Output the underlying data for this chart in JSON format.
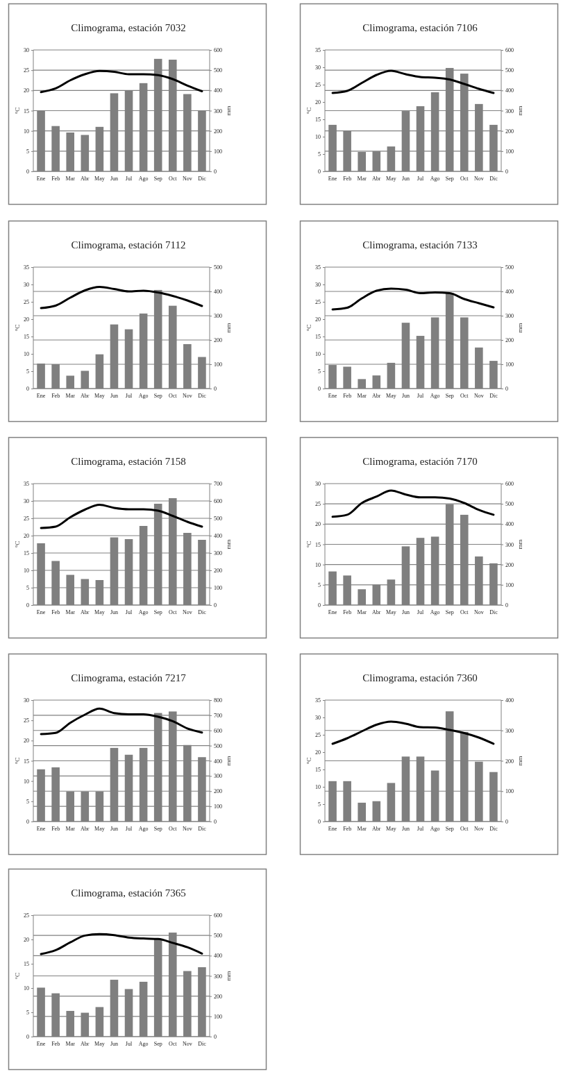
{
  "chart_data": [
    {
      "type": "bar",
      "title": "Climograma, estación 7032",
      "categories": [
        "Ene",
        "Feb",
        "Mar",
        "Abr",
        "May",
        "Jun",
        "Jul",
        "Ago",
        "Sep",
        "Oct",
        "Nov",
        "Dic"
      ],
      "ylabel": "°C",
      "y2label": "mm",
      "ylim": [
        0,
        30
      ],
      "yticks": [
        0,
        5,
        10,
        15,
        20,
        25,
        30
      ],
      "y2lim": [
        0,
        600
      ],
      "y2ticks": [
        0,
        100,
        200,
        300,
        400,
        500,
        600
      ],
      "grid": "y2",
      "series": [
        {
          "axis": "y2",
          "color": "#7f7f7f",
          "values": [
            300,
            224,
            192,
            180,
            220,
            386,
            400,
            436,
            556,
            552,
            382,
            300
          ]
        },
        {
          "type": "line",
          "axis": "y",
          "color": "#000000",
          "values": [
            19.6,
            20.5,
            22.5,
            24,
            24.8,
            24.6,
            24,
            24,
            23.8,
            22.8,
            21.2,
            19.8
          ]
        }
      ]
    },
    {
      "type": "bar",
      "title": "Climograma, estación 7106",
      "categories": [
        "Ene",
        "Feb",
        "Mar",
        "Abr",
        "May",
        "Jun",
        "Jul",
        "Ago",
        "Sep",
        "Oct",
        "Nov",
        "Dic"
      ],
      "ylabel": "°C",
      "y2label": "mm",
      "ylim": [
        0,
        35
      ],
      "yticks": [
        0,
        5,
        10,
        15,
        20,
        25,
        30,
        35
      ],
      "y2lim": [
        0,
        600
      ],
      "y2ticks": [
        0,
        100,
        200,
        300,
        400,
        500,
        600
      ],
      "grid": "y2",
      "series": [
        {
          "axis": "y2",
          "color": "#7f7f7f",
          "values": [
            230,
            202,
            96,
            99,
            123,
            298,
            322,
            391,
            511,
            483,
            333,
            230
          ]
        },
        {
          "type": "line",
          "axis": "y",
          "color": "#000000",
          "values": [
            22.6,
            23.2,
            25.5,
            27.8,
            29,
            28,
            27.2,
            27,
            26.5,
            25.2,
            23.8,
            22.6
          ]
        }
      ]
    },
    {
      "type": "bar",
      "title": "Climograma, estación 7112",
      "categories": [
        "Ene",
        "Feb",
        "Mar",
        "Abr",
        "May",
        "Jun",
        "Jul",
        "Ago",
        "Sep",
        "Oct",
        "Nov",
        "Dic"
      ],
      "ylabel": "°C",
      "y2label": "mm",
      "ylim": [
        0,
        35
      ],
      "yticks": [
        0,
        5,
        10,
        15,
        20,
        25,
        30,
        35
      ],
      "y2lim": [
        0,
        500
      ],
      "y2ticks": [
        0,
        100,
        200,
        300,
        400,
        500
      ],
      "grid": "y2",
      "series": [
        {
          "axis": "y2",
          "color": "#7f7f7f",
          "values": [
            103,
            100,
            53,
            73,
            141,
            264,
            244,
            309,
            406,
            341,
            183,
            130
          ]
        },
        {
          "type": "line",
          "axis": "y",
          "color": "#000000",
          "values": [
            23.2,
            23.9,
            26.2,
            28.3,
            29.3,
            28.7,
            28,
            28.2,
            27.7,
            26.7,
            25.4,
            23.8
          ]
        }
      ]
    },
    {
      "type": "bar",
      "title": "Climograma, estación 7133",
      "categories": [
        "Ene",
        "Feb",
        "Mar",
        "Abr",
        "May",
        "Jun",
        "Jul",
        "Ago",
        "Sep",
        "Oct",
        "Nov",
        "Dic"
      ],
      "ylabel": "°C",
      "y2label": "mm",
      "ylim": [
        0,
        35
      ],
      "yticks": [
        0,
        5,
        10,
        15,
        20,
        25,
        30,
        35
      ],
      "y2lim": [
        0,
        500
      ],
      "y2ticks": [
        0,
        100,
        200,
        300,
        400,
        500
      ],
      "grid": "y2",
      "series": [
        {
          "axis": "y2",
          "color": "#7f7f7f",
          "values": [
            97,
            90,
            39,
            54,
            106,
            271,
            217,
            293,
            393,
            293,
            169,
            114
          ]
        },
        {
          "type": "line",
          "axis": "y",
          "color": "#000000",
          "values": [
            22.8,
            23.3,
            26,
            28.2,
            28.8,
            28.5,
            27.5,
            27.7,
            27.5,
            25.8,
            24.6,
            23.4
          ]
        }
      ]
    },
    {
      "type": "bar",
      "title": "Climograma, estación 7158",
      "categories": [
        "Ene",
        "Feb",
        "Mar",
        "Abr",
        "May",
        "Jun",
        "Jul",
        "Ago",
        "Sep",
        "Oct",
        "Nov",
        "Dic"
      ],
      "ylabel": "°C",
      "y2label": "mm",
      "ylim": [
        0,
        35
      ],
      "yticks": [
        0,
        5,
        10,
        15,
        20,
        25,
        30,
        35
      ],
      "y2lim": [
        0,
        700
      ],
      "y2ticks": [
        0,
        100,
        200,
        300,
        400,
        500,
        600,
        700
      ],
      "grid": "y2",
      "series": [
        {
          "axis": "y2",
          "color": "#7f7f7f",
          "values": [
            356,
            254,
            174,
            150,
            144,
            390,
            380,
            456,
            584,
            616,
            416,
            376
          ]
        },
        {
          "type": "line",
          "axis": "y",
          "color": "#000000",
          "values": [
            22.2,
            22.6,
            25.3,
            27.5,
            28.9,
            28,
            27.6,
            27.6,
            27.2,
            25.7,
            24,
            22.6
          ]
        }
      ]
    },
    {
      "type": "bar",
      "title": "Climograma, estación 7170",
      "categories": [
        "Ene",
        "Feb",
        "Mar",
        "Abr",
        "May",
        "Jun",
        "Jul",
        "Ago",
        "Sep",
        "Oct",
        "Nov",
        "Dic"
      ],
      "ylabel": "°C",
      "y2label": "mm",
      "ylim": [
        0,
        30
      ],
      "yticks": [
        0,
        5,
        10,
        15,
        20,
        25,
        30
      ],
      "y2lim": [
        0,
        600
      ],
      "y2ticks": [
        0,
        100,
        200,
        300,
        400,
        500,
        600
      ],
      "grid": "y2",
      "series": [
        {
          "axis": "y2",
          "color": "#7f7f7f",
          "values": [
            166,
            146,
            78,
            100,
            126,
            290,
            332,
            338,
            498,
            446,
            240,
            206
          ]
        },
        {
          "type": "line",
          "axis": "y",
          "color": "#000000",
          "values": [
            21.8,
            22.3,
            25.2,
            26.8,
            28.3,
            27.3,
            26.6,
            26.6,
            26.3,
            25.2,
            23.5,
            22.3
          ]
        }
      ]
    },
    {
      "type": "bar",
      "title": "Climograma, estación 7217",
      "categories": [
        "Ene",
        "Feb",
        "Mar",
        "Abr",
        "May",
        "Jun",
        "Jul",
        "Ago",
        "Sep",
        "Oct",
        "Nov",
        "Dic"
      ],
      "ylabel": "°C",
      "y2label": "mm",
      "ylim": [
        0,
        30
      ],
      "yticks": [
        0,
        5,
        10,
        15,
        20,
        25,
        30
      ],
      "y2lim": [
        0,
        800
      ],
      "y2ticks": [
        0,
        100,
        200,
        300,
        400,
        500,
        600,
        700,
        800
      ],
      "grid": "y2",
      "series": [
        {
          "axis": "y2",
          "color": "#7f7f7f",
          "values": [
            344,
            357,
            197,
            197,
            197,
            485,
            440,
            485,
            715,
            725,
            504,
            424
          ]
        },
        {
          "type": "line",
          "axis": "y",
          "color": "#000000",
          "values": [
            21.6,
            21.9,
            24.4,
            26.4,
            27.9,
            26.8,
            26.5,
            26.5,
            25.9,
            24.8,
            23,
            22
          ]
        }
      ]
    },
    {
      "type": "bar",
      "title": "Climograma, estación 7360",
      "categories": [
        "Ene",
        "Feb",
        "Mar",
        "Abr",
        "May",
        "Jun",
        "Jul",
        "Ago",
        "Sep",
        "Oct",
        "Nov",
        "Dic"
      ],
      "ylabel": "°C",
      "y2label": "mm",
      "ylim": [
        0,
        35
      ],
      "yticks": [
        0,
        5,
        10,
        15,
        20,
        25,
        30,
        35
      ],
      "y2lim": [
        0,
        400
      ],
      "y2ticks": [
        0,
        100,
        200,
        300,
        400
      ],
      "grid": "y2",
      "series": [
        {
          "axis": "y2",
          "color": "#7f7f7f",
          "values": [
            133,
            133,
            62,
            67,
            127,
            214,
            214,
            168,
            363,
            295,
            197,
            163
          ]
        },
        {
          "type": "line",
          "axis": "y",
          "color": "#000000",
          "values": [
            22.4,
            24,
            26,
            27.9,
            28.8,
            28.2,
            27.2,
            27.1,
            26.4,
            25.5,
            24.2,
            22.4
          ]
        }
      ]
    },
    {
      "type": "bar",
      "title": "Climograma, estación 7365",
      "categories": [
        "Ene",
        "Feb",
        "Mar",
        "Abr",
        "May",
        "Jun",
        "Jul",
        "Ago",
        "Sep",
        "Oct",
        "Nov",
        "Dic"
      ],
      "ylabel": "ºC",
      "y2label": "mm",
      "ylim": [
        0,
        25
      ],
      "yticks": [
        0,
        5,
        10,
        15,
        20,
        25
      ],
      "y2lim": [
        0,
        600
      ],
      "y2ticks": [
        0,
        100,
        200,
        300,
        400,
        500,
        600
      ],
      "grid": "y2",
      "series": [
        {
          "axis": "y2",
          "color": "#7f7f7f",
          "values": [
            242,
            214,
            127,
            118,
            146,
            281,
            235,
            271,
            480,
            514,
            324,
            343
          ]
        },
        {
          "type": "line",
          "axis": "y",
          "color": "#000000",
          "values": [
            17,
            17.8,
            19.4,
            20.8,
            21.1,
            20.9,
            20.4,
            20.2,
            20.1,
            19.3,
            18.4,
            17.1
          ]
        }
      ]
    }
  ]
}
